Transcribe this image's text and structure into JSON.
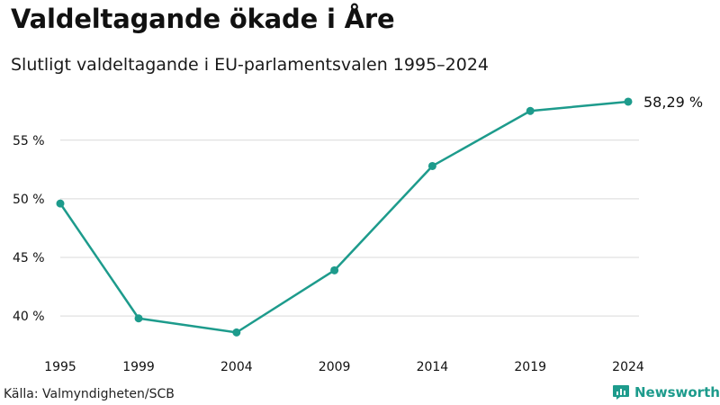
{
  "header": {
    "title": "Valdeltagande ökade i Åre",
    "subtitle": "Slutligt valdeltagande i EU-parlamentsvalen 1995–2024"
  },
  "footer": {
    "source": "Källa: Valmyndigheten/SCB",
    "brand": "Newsworthy"
  },
  "colors": {
    "line": "#1d9b8c",
    "grid": "#d9d9d9",
    "text": "#111111"
  },
  "chart_data": {
    "type": "line",
    "title": "Valdeltagande ökade i Åre",
    "subtitle": "Slutligt valdeltagande i EU-parlamentsvalen 1995–2024",
    "xlabel": "",
    "ylabel": "",
    "x": [
      1995,
      1999,
      2004,
      2009,
      2014,
      2019,
      2024
    ],
    "x_tick_labels": [
      "1995",
      "1999",
      "2004",
      "2009",
      "2014",
      "2019",
      "2024"
    ],
    "series": [
      {
        "name": "Valdeltagande",
        "values": [
          49.6,
          39.8,
          38.6,
          43.9,
          52.8,
          57.5,
          58.29
        ]
      }
    ],
    "y_ticks": [
      40,
      45,
      50,
      55
    ],
    "y_tick_labels": [
      "40 %",
      "45 %",
      "50 %",
      "55 %"
    ],
    "ylim": [
      37.4,
      59.9
    ],
    "grid": true,
    "end_label": "58,29 %"
  }
}
